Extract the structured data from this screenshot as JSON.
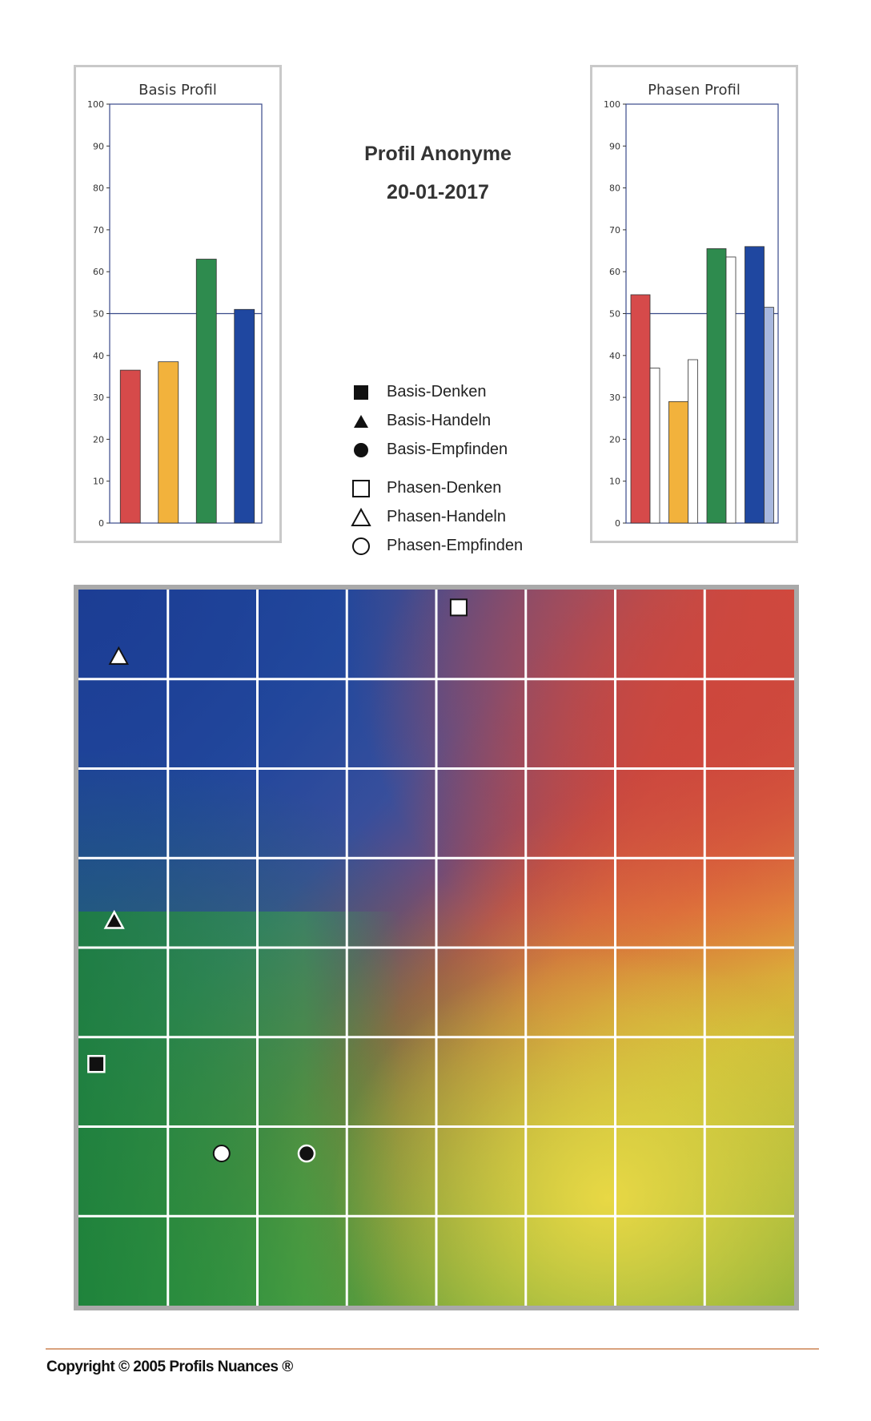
{
  "header": {
    "title": "Profil Anonyme",
    "date": "20-01-2017"
  },
  "chart_data": [
    {
      "type": "bar",
      "title": "Basis Profil",
      "ylim": [
        0,
        100
      ],
      "yticks": [
        "0",
        "10",
        "20",
        "30",
        "40",
        "50",
        "60",
        "70",
        "80",
        "90",
        "100"
      ],
      "reference_line": 50,
      "series": [
        {
          "values": [
            36.5,
            38.5,
            63,
            51
          ],
          "colors": [
            "#d64a4a",
            "#f2b23c",
            "#2e8b4e",
            "#1f47a0"
          ]
        }
      ]
    },
    {
      "type": "bar",
      "title": "Phasen Profil",
      "ylim": [
        0,
        100
      ],
      "yticks": [
        "0",
        "10",
        "20",
        "30",
        "40",
        "50",
        "60",
        "70",
        "80",
        "90",
        "100"
      ],
      "reference_line": 50,
      "series": [
        {
          "values": [
            54.5,
            29,
            65.5,
            66
          ],
          "colors": [
            "#d64a4a",
            "#f2b23c",
            "#2e8b4e",
            "#1f47a0"
          ]
        },
        {
          "values": [
            37,
            39,
            63.5,
            51.5
          ],
          "colors": [
            "#ffffff",
            "#ffffff",
            "#ffffff",
            "#a8b8de"
          ]
        }
      ]
    },
    {
      "type": "scatter",
      "grid": "8x8",
      "series": [
        {
          "name": "Basis-Denken",
          "symbol": "filled-square",
          "point": [
            0.2,
            2.7
          ]
        },
        {
          "name": "Basis-Handeln",
          "symbol": "filled-triangle",
          "point": [
            0.4,
            4.3
          ]
        },
        {
          "name": "Basis-Empfinden",
          "symbol": "filled-circle",
          "point": [
            2.55,
            1.7
          ]
        },
        {
          "name": "Phasen-Denken",
          "symbol": "open-square",
          "point": [
            4.25,
            7.8
          ]
        },
        {
          "name": "Phasen-Handeln",
          "symbol": "open-triangle",
          "point": [
            0.45,
            7.25
          ]
        },
        {
          "name": "Phasen-Empfinden",
          "symbol": "open-circle",
          "point": [
            1.6,
            1.7
          ]
        }
      ]
    }
  ],
  "legend": {
    "items": [
      {
        "label": "Basis-Denken",
        "symbol": "filled-square"
      },
      {
        "label": "Basis-Handeln",
        "symbol": "filled-triangle"
      },
      {
        "label": "Basis-Empfinden",
        "symbol": "filled-circle"
      },
      {
        "label": "Phasen-Denken",
        "symbol": "open-square"
      },
      {
        "label": "Phasen-Handeln",
        "symbol": "open-triangle"
      },
      {
        "label": "Phasen-Empfinden",
        "symbol": "open-circle"
      }
    ]
  },
  "footer": {
    "copyright": "Copyright © 2005 Profils Nuances ®"
  }
}
